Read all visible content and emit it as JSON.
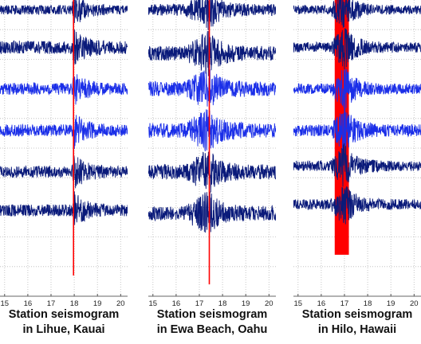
{
  "colors": {
    "trace_dark": "#0a1a7a",
    "trace_bright": "#1a2ee8",
    "highlight": "#ff0000",
    "grid": "#b8b8b8"
  },
  "chart_data": [
    {
      "type": "line",
      "title": "Station seismogram",
      "subtitle": "in Lihue, Kauai",
      "xlabel": "",
      "ylabel": "",
      "xlim": [
        14.8,
        20.3
      ],
      "x_ticks": [
        "15",
        "16",
        "17",
        "18",
        "19",
        "20"
      ],
      "grid": true,
      "series": [
        {
          "trace": 1,
          "baseline": 0.033,
          "noise": 0.032,
          "color": "dark"
        },
        {
          "trace": 2,
          "baseline": 0.16,
          "noise": 0.045,
          "color": "dark"
        },
        {
          "trace": 3,
          "baseline": 0.3,
          "noise": 0.04,
          "color": "bright"
        },
        {
          "trace": 4,
          "baseline": 0.44,
          "noise": 0.04,
          "color": "bright"
        },
        {
          "trace": 5,
          "baseline": 0.58,
          "noise": 0.04,
          "color": "dark"
        },
        {
          "trace": 6,
          "baseline": 0.71,
          "noise": 0.04,
          "color": "dark"
        }
      ],
      "arrival_time": 17.95,
      "event_signal": {
        "start": 17.9,
        "peak": 18.0,
        "end": 19.3,
        "amplitude": 0.09
      },
      "highlight": {
        "type": "line",
        "x": 17.97,
        "depth": 0.93
      }
    },
    {
      "type": "line",
      "title": "Station seismogram",
      "subtitle": "in Ewa Beach, Oahu",
      "xlabel": "",
      "ylabel": "",
      "xlim": [
        14.8,
        20.3
      ],
      "x_ticks": [
        "15",
        "16",
        "17",
        "18",
        "19",
        "20"
      ],
      "grid": true,
      "series": [
        {
          "trace": 1,
          "baseline": 0.033,
          "noise": 0.04,
          "color": "dark"
        },
        {
          "trace": 2,
          "baseline": 0.18,
          "noise": 0.05,
          "color": "dark"
        },
        {
          "trace": 3,
          "baseline": 0.3,
          "noise": 0.05,
          "color": "bright"
        },
        {
          "trace": 4,
          "baseline": 0.44,
          "noise": 0.05,
          "color": "bright"
        },
        {
          "trace": 5,
          "baseline": 0.58,
          "noise": 0.05,
          "color": "dark"
        },
        {
          "trace": 6,
          "baseline": 0.72,
          "noise": 0.05,
          "color": "dark"
        }
      ],
      "arrival_time": 17.4,
      "event_signal": {
        "start": 16.4,
        "peak": 17.4,
        "end": 19.0,
        "amplitude": 0.11
      },
      "highlight": {
        "type": "line",
        "x": 17.43,
        "depth": 0.96
      }
    },
    {
      "type": "line",
      "title": "Station seismogram",
      "subtitle": "in Hilo, Hawaii",
      "xlabel": "",
      "ylabel": "",
      "xlim": [
        14.8,
        20.3
      ],
      "x_ticks": [
        "15",
        "16",
        "17",
        "18",
        "19",
        "20"
      ],
      "grid": true,
      "series": [
        {
          "trace": 1,
          "baseline": 0.033,
          "noise": 0.03,
          "color": "dark"
        },
        {
          "trace": 2,
          "baseline": 0.16,
          "noise": 0.035,
          "color": "dark"
        },
        {
          "trace": 3,
          "baseline": 0.3,
          "noise": 0.035,
          "color": "bright"
        },
        {
          "trace": 4,
          "baseline": 0.44,
          "noise": 0.04,
          "color": "bright"
        },
        {
          "trace": 5,
          "baseline": 0.56,
          "noise": 0.035,
          "color": "dark"
        },
        {
          "trace": 6,
          "baseline": 0.69,
          "noise": 0.035,
          "color": "dark"
        }
      ],
      "arrival_time": 16.9,
      "event_signal": {
        "start": 16.4,
        "peak": 17.0,
        "end": 19.2,
        "amplitude": 0.12
      },
      "highlight": {
        "type": "band",
        "from": 16.58,
        "to": 17.19,
        "depth": 0.86
      }
    }
  ]
}
